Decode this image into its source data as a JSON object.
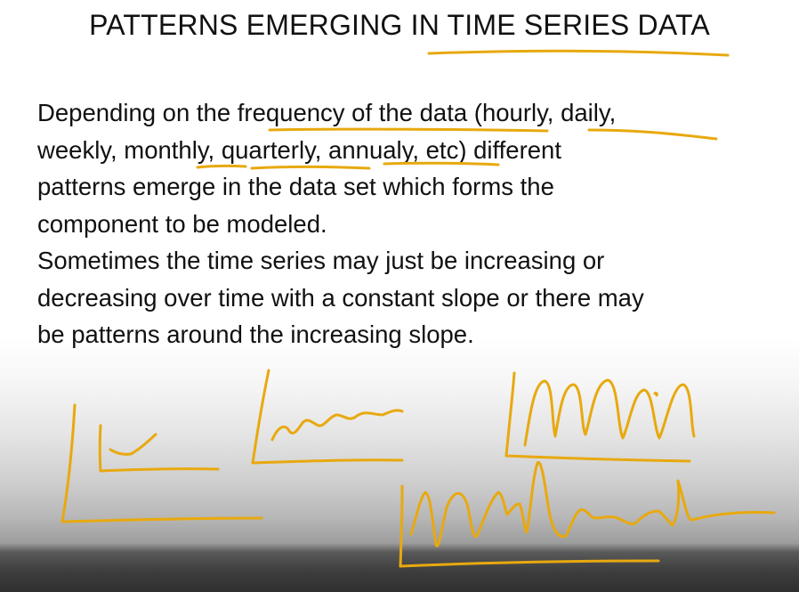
{
  "slide": {
    "title": "PATTERNS EMERGING IN TIME SERIES DATA",
    "paragraph_1_lines": [
      "Depending on the frequency of the data (hourly, daily,",
      "weekly, monthly, quarterly, annualy, etc) different",
      "patterns emerge in the data set which forms the",
      "component to be modeled."
    ],
    "paragraph_2_lines": [
      "Sometimes the time series may just be increasing or",
      "decreasing over time with a constant slope or there may",
      "be patterns around the increasing slope."
    ]
  },
  "annotations": {
    "ink_color": "#e8a90f",
    "sketches": [
      "rising-trend-sketch",
      "wavy-trend-sketch",
      "seasonal-peaks-sketch",
      "irregular-pattern-sketch"
    ]
  }
}
